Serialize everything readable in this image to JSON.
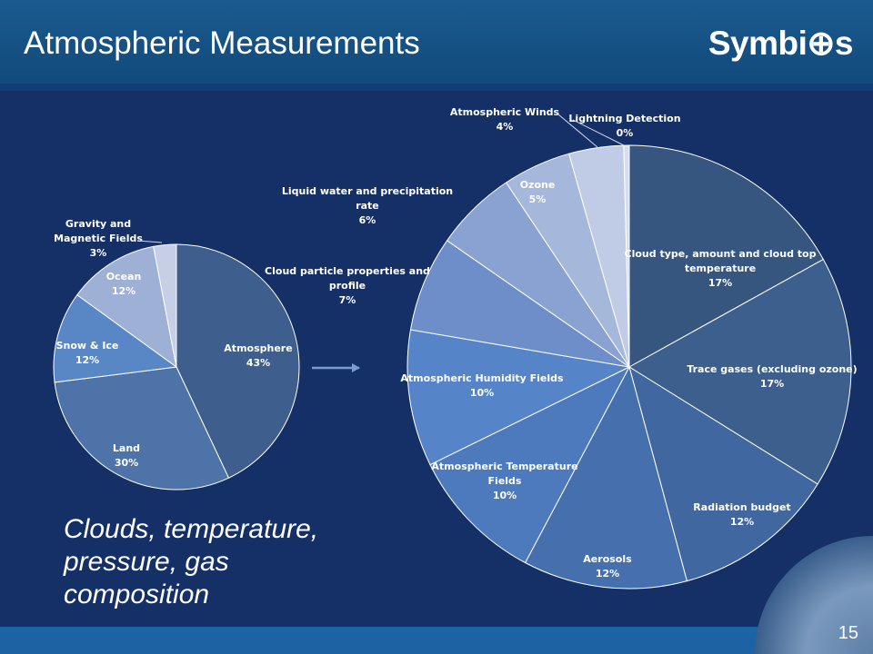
{
  "slide": {
    "title": "Atmospheric Measurements",
    "logo": "Symbi⊕s",
    "caption": "Clouds, temperature, pressure, gas composition",
    "number": "15"
  },
  "colors": {
    "background": "#143067",
    "header": "#1a5a8e",
    "pie_shades": [
      "#3b5b87",
      "#4a6fa3",
      "#5a84c2",
      "#7894c7",
      "#a3b4d8",
      "#c4cde6"
    ]
  },
  "chart_data": [
    {
      "type": "pie",
      "slices": [
        {
          "label": "Atmosphere",
          "value": 43,
          "value_text": "43%",
          "color": "#3e5f8e"
        },
        {
          "label": "Land",
          "value": 30,
          "value_text": "30%",
          "color": "#4d73a8"
        },
        {
          "label": "Snow & Ice",
          "value": 12,
          "value_text": "12%",
          "color": "#5987c6"
        },
        {
          "label": "Ocean",
          "value": 12,
          "value_text": "12%",
          "color": "#9fb0d6"
        },
        {
          "label": "Gravity and Magnetic Fields",
          "value": 3,
          "value_text": "3%",
          "color": "#c6cfe6"
        }
      ]
    },
    {
      "type": "pie",
      "slices": [
        {
          "label": "Cloud type, amount and cloud top temperature",
          "value": 17,
          "value_text": "17%",
          "color": "#365680"
        },
        {
          "label": "Trace gases (excluding ozone)",
          "value": 17,
          "value_text": "17%",
          "color": "#3c5f8e"
        },
        {
          "label": "Radiation budget",
          "value": 12,
          "value_text": "12%",
          "color": "#4167a0"
        },
        {
          "label": "Aerosols",
          "value": 12,
          "value_text": "12%",
          "color": "#4670ad"
        },
        {
          "label": "Atmospheric Temperature Fields",
          "value": 10,
          "value_text": "10%",
          "color": "#4c7abd"
        },
        {
          "label": "Atmospheric Humidity Fields",
          "value": 10,
          "value_text": "10%",
          "color": "#5684c8"
        },
        {
          "label": "Cloud particle properties and profile",
          "value": 7,
          "value_text": "7%",
          "color": "#6e8ec9"
        },
        {
          "label": "Liquid water and precipitation rate",
          "value": 6,
          "value_text": "6%",
          "color": "#8aa2d1"
        },
        {
          "label": "Ozone",
          "value": 5,
          "value_text": "5%",
          "color": "#a6b7dc"
        },
        {
          "label": "Atmospheric Winds",
          "value": 4,
          "value_text": "4%",
          "color": "#c0cbe5"
        },
        {
          "label": "Lightning Detection",
          "value": 0.4,
          "value_text": "0%",
          "color": "#d8def0"
        }
      ]
    }
  ]
}
